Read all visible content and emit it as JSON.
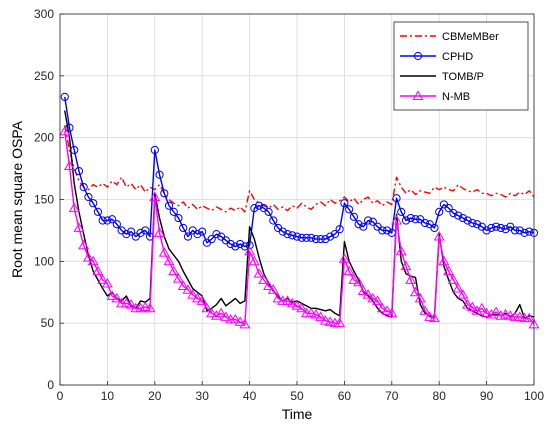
{
  "chart_data": {
    "type": "line",
    "title": "",
    "xlabel": "Time",
    "ylabel": "Root mean square OSPA",
    "xlim": [
      0,
      100
    ],
    "ylim": [
      0,
      300
    ],
    "xticks": [
      0,
      10,
      20,
      30,
      40,
      50,
      60,
      70,
      80,
      90,
      100
    ],
    "yticks": [
      0,
      50,
      100,
      150,
      200,
      250,
      300
    ],
    "grid": true,
    "legend_position": "top-right",
    "series": [
      {
        "name": "CBMeMBer",
        "color": "#ff0000",
        "line_style": "dash-dot",
        "marker": "none",
        "x": [
          1,
          2,
          3,
          4,
          5,
          6,
          7,
          8,
          9,
          10,
          11,
          12,
          13,
          14,
          15,
          16,
          17,
          18,
          19,
          20,
          21,
          22,
          23,
          24,
          25,
          26,
          27,
          28,
          29,
          30,
          31,
          32,
          33,
          34,
          35,
          36,
          37,
          38,
          39,
          40,
          41,
          42,
          43,
          44,
          45,
          46,
          47,
          48,
          49,
          50,
          51,
          52,
          53,
          54,
          55,
          56,
          57,
          58,
          59,
          60,
          61,
          62,
          63,
          64,
          65,
          66,
          67,
          68,
          69,
          70,
          71,
          72,
          73,
          74,
          75,
          76,
          77,
          78,
          79,
          80,
          81,
          82,
          83,
          84,
          85,
          86,
          87,
          88,
          89,
          90,
          91,
          92,
          93,
          94,
          95,
          96,
          97,
          98,
          99,
          100
        ],
        "values": [
          210,
          190,
          175,
          165,
          160,
          158,
          162,
          160,
          163,
          160,
          165,
          162,
          168,
          160,
          163,
          158,
          162,
          156,
          160,
          158,
          162,
          155,
          150,
          147,
          145,
          148,
          143,
          146,
          142,
          145,
          143,
          141,
          144,
          142,
          140,
          143,
          141,
          144,
          140,
          157,
          150,
          147,
          145,
          143,
          146,
          142,
          144,
          141,
          145,
          143,
          147,
          144,
          142,
          146,
          148,
          145,
          150,
          147,
          149,
          152,
          148,
          151,
          146,
          150,
          152,
          147,
          149,
          145,
          148,
          146,
          168,
          160,
          155,
          158,
          154,
          157,
          156,
          155,
          160,
          158,
          160,
          158,
          157,
          162,
          159,
          157,
          156,
          158,
          155,
          155,
          153,
          155,
          154,
          152,
          155,
          153,
          156,
          154,
          157,
          152
        ]
      },
      {
        "name": "CPHD",
        "color": "#0000ff",
        "line_style": "solid",
        "marker": "circle",
        "x": [
          1,
          2,
          3,
          4,
          5,
          6,
          7,
          8,
          9,
          10,
          11,
          12,
          13,
          14,
          15,
          16,
          17,
          18,
          19,
          20,
          21,
          22,
          23,
          24,
          25,
          26,
          27,
          28,
          29,
          30,
          31,
          32,
          33,
          34,
          35,
          36,
          37,
          38,
          39,
          40,
          41,
          42,
          43,
          44,
          45,
          46,
          47,
          48,
          49,
          50,
          51,
          52,
          53,
          54,
          55,
          56,
          57,
          58,
          59,
          60,
          61,
          62,
          63,
          64,
          65,
          66,
          67,
          68,
          69,
          70,
          71,
          72,
          73,
          74,
          75,
          76,
          77,
          78,
          79,
          80,
          81,
          82,
          83,
          84,
          85,
          86,
          87,
          88,
          89,
          90,
          91,
          92,
          93,
          94,
          95,
          96,
          97,
          98,
          99,
          100
        ],
        "values": [
          233,
          208,
          190,
          173,
          160,
          152,
          147,
          140,
          133,
          133,
          134,
          130,
          125,
          122,
          124,
          120,
          123,
          125,
          120,
          190,
          170,
          155,
          145,
          140,
          135,
          127,
          120,
          125,
          122,
          124,
          115,
          118,
          122,
          120,
          117,
          114,
          112,
          114,
          112,
          113,
          143,
          145,
          143,
          140,
          133,
          127,
          124,
          122,
          121,
          120,
          119,
          119,
          119,
          118,
          118,
          118,
          120,
          122,
          126,
          147,
          142,
          136,
          130,
          128,
          133,
          132,
          128,
          125,
          125,
          123,
          151,
          140,
          133,
          135,
          134,
          134,
          131,
          130,
          127,
          140,
          146,
          143,
          139,
          137,
          135,
          133,
          131,
          130,
          128,
          125,
          127,
          128,
          127,
          126,
          128,
          125,
          125,
          123,
          124,
          123
        ]
      },
      {
        "name": "TOMB/P",
        "color": "#000000",
        "line_style": "solid",
        "marker": "none",
        "x": [
          1,
          2,
          3,
          4,
          5,
          6,
          7,
          8,
          9,
          10,
          11,
          12,
          13,
          14,
          15,
          16,
          17,
          18,
          19,
          20,
          21,
          22,
          23,
          24,
          25,
          26,
          27,
          28,
          29,
          30,
          31,
          32,
          33,
          34,
          35,
          36,
          37,
          38,
          39,
          40,
          41,
          42,
          43,
          44,
          45,
          46,
          47,
          48,
          49,
          50,
          51,
          52,
          53,
          54,
          55,
          56,
          57,
          58,
          59,
          60,
          61,
          62,
          63,
          64,
          65,
          66,
          67,
          68,
          69,
          70,
          71,
          72,
          73,
          74,
          75,
          76,
          77,
          78,
          79,
          80,
          81,
          82,
          83,
          84,
          85,
          86,
          87,
          88,
          89,
          90,
          91,
          92,
          93,
          94,
          95,
          96,
          97,
          98,
          99,
          100
        ],
        "values": [
          222,
          200,
          163,
          140,
          122,
          105,
          92,
          85,
          78,
          72,
          75,
          70,
          68,
          72,
          64,
          62,
          68,
          67,
          70,
          155,
          135,
          120,
          110,
          105,
          100,
          92,
          85,
          78,
          75,
          72,
          60,
          62,
          65,
          70,
          64,
          67,
          70,
          66,
          68,
          128,
          118,
          103,
          90,
          82,
          76,
          72,
          68,
          70,
          67,
          68,
          66,
          64,
          62,
          62,
          61,
          60,
          61,
          58,
          56,
          116,
          100,
          92,
          85,
          75,
          72,
          68,
          62,
          58,
          56,
          55,
          138,
          100,
          90,
          88,
          87,
          65,
          58,
          56,
          55,
          122,
          96,
          85,
          75,
          70,
          68,
          62,
          60,
          58,
          56,
          55,
          57,
          57,
          56,
          58,
          55,
          58,
          65,
          54,
          56,
          55
        ]
      },
      {
        "name": "N-MB",
        "color": "#ff00ff",
        "line_style": "solid",
        "marker": "triangle",
        "x": [
          1,
          2,
          3,
          4,
          5,
          6,
          7,
          8,
          9,
          10,
          11,
          12,
          13,
          14,
          15,
          16,
          17,
          18,
          19,
          20,
          21,
          22,
          23,
          24,
          25,
          26,
          27,
          28,
          29,
          30,
          31,
          32,
          33,
          34,
          35,
          36,
          37,
          38,
          39,
          40,
          41,
          42,
          43,
          44,
          45,
          46,
          47,
          48,
          49,
          50,
          51,
          52,
          53,
          54,
          55,
          56,
          57,
          58,
          59,
          60,
          61,
          62,
          63,
          64,
          65,
          66,
          67,
          68,
          69,
          70,
          71,
          72,
          73,
          74,
          75,
          76,
          77,
          78,
          79,
          80,
          81,
          82,
          83,
          84,
          85,
          86,
          87,
          88,
          89,
          90,
          91,
          92,
          93,
          94,
          95,
          96,
          97,
          98,
          99,
          100
        ],
        "values": [
          205,
          177,
          143,
          127,
          113,
          103,
          100,
          92,
          85,
          82,
          72,
          70,
          66,
          66,
          65,
          62,
          62,
          63,
          62,
          152,
          123,
          107,
          100,
          92,
          86,
          80,
          77,
          73,
          70,
          68,
          62,
          58,
          56,
          58,
          55,
          53,
          53,
          51,
          49,
          108,
          100,
          90,
          85,
          80,
          77,
          70,
          68,
          68,
          66,
          64,
          62,
          58,
          58,
          57,
          55,
          52,
          51,
          50,
          50,
          102,
          92,
          85,
          83,
          76,
          73,
          70,
          68,
          62,
          60,
          58,
          133,
          108,
          96,
          85,
          75,
          70,
          60,
          55,
          54,
          120,
          100,
          92,
          85,
          78,
          73,
          65,
          63,
          60,
          62,
          58,
          57,
          59,
          56,
          57,
          56,
          55,
          55,
          54,
          54,
          49
        ]
      }
    ]
  }
}
